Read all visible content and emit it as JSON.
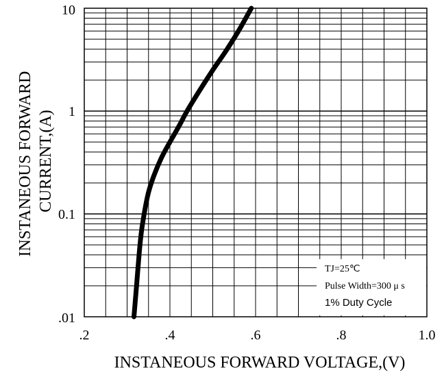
{
  "chart_data": {
    "type": "line",
    "x_label": "INSTANEOUS FORWARD VOLTAGE,(V)",
    "y_label_lines": [
      "INSTANEOUS FORWARD",
      "CURRENT,(A)"
    ],
    "x_scale": "linear",
    "y_scale": "log",
    "xlim": [
      0.2,
      1.0
    ],
    "ylim": [
      0.01,
      10
    ],
    "x_ticks": [
      0.2,
      0.4,
      0.6,
      0.8,
      1.0
    ],
    "x_tick_labels": [
      ".2",
      ".4",
      ".6",
      ".8",
      "1.0"
    ],
    "y_ticks": [
      0.01,
      0.1,
      1,
      10
    ],
    "y_tick_labels": [
      ".01",
      "0.1",
      "1",
      "10"
    ],
    "grid": true,
    "annotation": {
      "lines": [
        "TJ=25℃",
        "Pulse Width=300 μ s",
        "1% Duty Cycle"
      ]
    },
    "series": [
      {
        "color": "#000000",
        "points": [
          [
            0.316,
            0.01
          ],
          [
            0.322,
            0.02
          ],
          [
            0.33,
            0.05
          ],
          [
            0.336,
            0.08
          ],
          [
            0.348,
            0.15
          ],
          [
            0.36,
            0.22
          ],
          [
            0.38,
            0.35
          ],
          [
            0.4,
            0.5
          ],
          [
            0.42,
            0.7
          ],
          [
            0.44,
            1.0
          ],
          [
            0.47,
            1.6
          ],
          [
            0.5,
            2.5
          ],
          [
            0.53,
            3.8
          ],
          [
            0.56,
            6.0
          ],
          [
            0.59,
            10.0
          ]
        ]
      }
    ]
  }
}
